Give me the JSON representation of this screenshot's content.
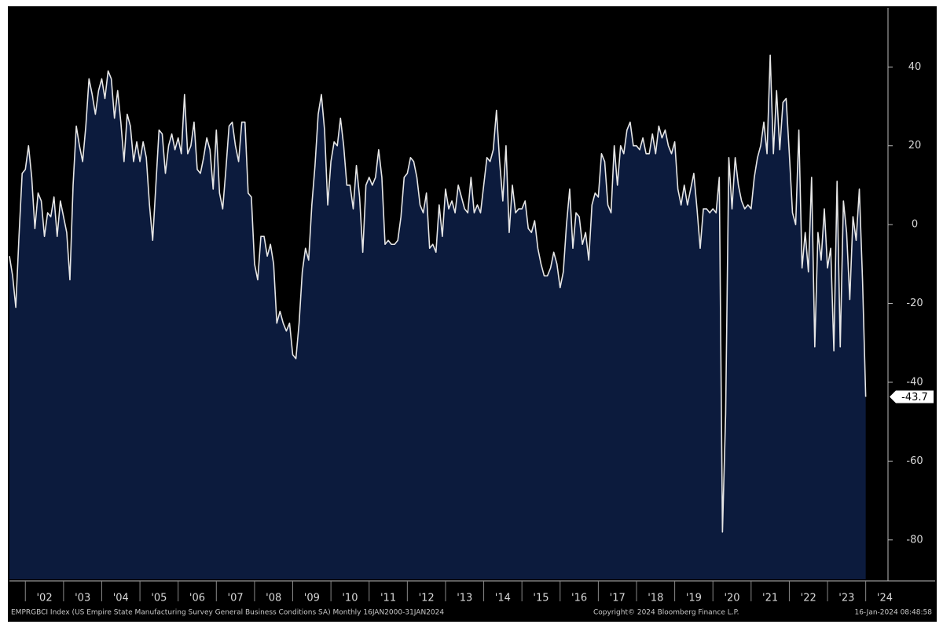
{
  "chart_data": {
    "type": "area",
    "source": "EMPRGBCI Index (US Empire State Manufacturing Survey General Business Conditions SA)  Monthly 16JAN2000-31JAN2024",
    "copyright": "Copyright© 2024 Bloomberg Finance L.P.",
    "timestamp": "16-Jan-2024 08:48:58",
    "x": [
      "2001-08",
      "2001-09",
      "2001-10",
      "2001-11",
      "2001-12",
      "2002-01",
      "2002-02",
      "2002-03",
      "2002-04",
      "2002-05",
      "2002-06",
      "2002-07",
      "2002-08",
      "2002-09",
      "2002-10",
      "2002-11",
      "2002-12",
      "2003-01",
      "2003-02",
      "2003-03",
      "2003-04",
      "2003-05",
      "2003-06",
      "2003-07",
      "2003-08",
      "2003-09",
      "2003-10",
      "2003-11",
      "2003-12",
      "2004-01",
      "2004-02",
      "2004-03",
      "2004-04",
      "2004-05",
      "2004-06",
      "2004-07",
      "2004-08",
      "2004-09",
      "2004-10",
      "2004-11",
      "2004-12",
      "2005-01",
      "2005-02",
      "2005-03",
      "2005-04",
      "2005-05",
      "2005-06",
      "2005-07",
      "2005-08",
      "2005-09",
      "2005-10",
      "2005-11",
      "2005-12",
      "2006-01",
      "2006-02",
      "2006-03",
      "2006-04",
      "2006-05",
      "2006-06",
      "2006-07",
      "2006-08",
      "2006-09",
      "2006-10",
      "2006-11",
      "2006-12",
      "2007-01",
      "2007-02",
      "2007-03",
      "2007-04",
      "2007-05",
      "2007-06",
      "2007-07",
      "2007-08",
      "2007-09",
      "2007-10",
      "2007-11",
      "2007-12",
      "2008-01",
      "2008-02",
      "2008-03",
      "2008-04",
      "2008-05",
      "2008-06",
      "2008-07",
      "2008-08",
      "2008-09",
      "2008-10",
      "2008-11",
      "2008-12",
      "2009-01",
      "2009-02",
      "2009-03",
      "2009-04",
      "2009-05",
      "2009-06",
      "2009-07",
      "2009-08",
      "2009-09",
      "2009-10",
      "2009-11",
      "2009-12",
      "2010-01",
      "2010-02",
      "2010-03",
      "2010-04",
      "2010-05",
      "2010-06",
      "2010-07",
      "2010-08",
      "2010-09",
      "2010-10",
      "2010-11",
      "2010-12",
      "2011-01",
      "2011-02",
      "2011-03",
      "2011-04",
      "2011-05",
      "2011-06",
      "2011-07",
      "2011-08",
      "2011-09",
      "2011-10",
      "2011-11",
      "2011-12",
      "2012-01",
      "2012-02",
      "2012-03",
      "2012-04",
      "2012-05",
      "2012-06",
      "2012-07",
      "2012-08",
      "2012-09",
      "2012-10",
      "2012-11",
      "2012-12",
      "2013-01",
      "2013-02",
      "2013-03",
      "2013-04",
      "2013-05",
      "2013-06",
      "2013-07",
      "2013-08",
      "2013-09",
      "2013-10",
      "2013-11",
      "2013-12",
      "2014-01",
      "2014-02",
      "2014-03",
      "2014-04",
      "2014-05",
      "2014-06",
      "2014-07",
      "2014-08",
      "2014-09",
      "2014-10",
      "2014-11",
      "2014-12",
      "2015-01",
      "2015-02",
      "2015-03",
      "2015-04",
      "2015-05",
      "2015-06",
      "2015-07",
      "2015-08",
      "2015-09",
      "2015-10",
      "2015-11",
      "2015-12",
      "2016-01",
      "2016-02",
      "2016-03",
      "2016-04",
      "2016-05",
      "2016-06",
      "2016-07",
      "2016-08",
      "2016-09",
      "2016-10",
      "2016-11",
      "2016-12",
      "2017-01",
      "2017-02",
      "2017-03",
      "2017-04",
      "2017-05",
      "2017-06",
      "2017-07",
      "2017-08",
      "2017-09",
      "2017-10",
      "2017-11",
      "2017-12",
      "2018-01",
      "2018-02",
      "2018-03",
      "2018-04",
      "2018-05",
      "2018-06",
      "2018-07",
      "2018-08",
      "2018-09",
      "2018-10",
      "2018-11",
      "2018-12",
      "2019-01",
      "2019-02",
      "2019-03",
      "2019-04",
      "2019-05",
      "2019-06",
      "2019-07",
      "2019-08",
      "2019-09",
      "2019-10",
      "2019-11",
      "2019-12",
      "2020-01",
      "2020-02",
      "2020-03",
      "2020-04",
      "2020-05",
      "2020-06",
      "2020-07",
      "2020-08",
      "2020-09",
      "2020-10",
      "2020-11",
      "2020-12",
      "2021-01",
      "2021-02",
      "2021-03",
      "2021-04",
      "2021-05",
      "2021-06",
      "2021-07",
      "2021-08",
      "2021-09",
      "2021-10",
      "2021-11",
      "2021-12",
      "2022-01",
      "2022-02",
      "2022-03",
      "2022-04",
      "2022-05",
      "2022-06",
      "2022-07",
      "2022-08",
      "2022-09",
      "2022-10",
      "2022-11",
      "2022-12",
      "2023-01",
      "2023-02",
      "2023-03",
      "2023-04",
      "2023-05",
      "2023-06",
      "2023-07",
      "2023-08",
      "2023-09",
      "2023-10",
      "2023-11",
      "2023-12",
      "2024-01"
    ],
    "series": [
      {
        "color": "#e6e6e6",
        "fill": "#0c1b3d",
        "values": [
          -8,
          -13,
          -21,
          -3,
          13,
          14,
          20,
          12,
          -1,
          8,
          6,
          -3,
          3,
          2,
          7,
          -3,
          6,
          2,
          -2,
          -14,
          10,
          25,
          20,
          16,
          25,
          37,
          33,
          28,
          34,
          37,
          32,
          39,
          37,
          27,
          34,
          26,
          16,
          28,
          25,
          16,
          21,
          16,
          21,
          17,
          5,
          -4,
          10,
          24,
          23,
          13,
          20,
          23,
          19,
          22,
          18,
          33,
          18,
          20,
          26,
          14,
          13,
          17,
          22,
          19,
          9,
          24,
          8,
          4,
          14,
          25,
          26,
          20,
          16,
          26,
          26,
          8,
          7,
          -10,
          -14,
          -3,
          -3,
          -8,
          -5,
          -10,
          -25,
          -22,
          -25,
          -27,
          -25,
          -33,
          -34,
          -25,
          -12,
          -6,
          -9,
          5,
          15,
          28,
          33,
          24,
          5,
          16,
          21,
          20,
          27,
          20,
          10,
          10,
          4,
          15,
          7,
          -7,
          10,
          12,
          10,
          12,
          19,
          12,
          -5,
          -4,
          -5,
          -5,
          -4,
          2,
          12,
          13,
          17,
          16,
          12,
          5,
          3,
          8,
          -6,
          -5,
          -7,
          5,
          -3,
          9,
          4,
          6,
          3,
          10,
          7,
          4,
          3,
          12,
          3,
          5,
          3,
          10,
          17,
          16,
          19,
          29,
          16,
          6,
          20,
          -2,
          10,
          3,
          4,
          4,
          6,
          -1,
          -2,
          1,
          -6,
          -10,
          -13,
          -13,
          -11,
          -7,
          -10,
          -16,
          -12,
          0,
          9,
          -6,
          3,
          2,
          -5,
          -2,
          -9,
          5,
          8,
          7,
          18,
          16,
          5,
          3,
          20,
          10,
          20,
          18,
          24,
          26,
          20,
          20,
          19,
          22,
          18,
          18,
          23,
          18,
          25,
          22,
          24,
          20,
          18,
          21,
          9,
          5,
          10,
          5,
          9,
          13,
          4,
          -6,
          4,
          4,
          3,
          4,
          3,
          12,
          -78,
          -48,
          17,
          4,
          17,
          10,
          6,
          4,
          5,
          4,
          12,
          17,
          20,
          26,
          18,
          43,
          18,
          34,
          19,
          31,
          32,
          18,
          3,
          0,
          24,
          -11,
          -2,
          -12,
          12,
          -31,
          -2,
          -9,
          4,
          -11,
          -6,
          -32,
          11,
          -31,
          6,
          -2,
          -19,
          2,
          -4,
          9,
          -14,
          -43.7
        ]
      }
    ],
    "xlim": [
      "2001-08",
      "2024-08"
    ],
    "xticks": [
      {
        "value": "2002-07",
        "label": "'02"
      },
      {
        "value": "2003-07",
        "label": "'03"
      },
      {
        "value": "2004-07",
        "label": "'04"
      },
      {
        "value": "2005-07",
        "label": "'05"
      },
      {
        "value": "2006-07",
        "label": "'06"
      },
      {
        "value": "2007-07",
        "label": "'07"
      },
      {
        "value": "2008-07",
        "label": "'08"
      },
      {
        "value": "2009-07",
        "label": "'09"
      },
      {
        "value": "2010-07",
        "label": "'10"
      },
      {
        "value": "2011-07",
        "label": "'11"
      },
      {
        "value": "2012-07",
        "label": "'12"
      },
      {
        "value": "2013-07",
        "label": "'13"
      },
      {
        "value": "2014-07",
        "label": "'14"
      },
      {
        "value": "2015-07",
        "label": "'15"
      },
      {
        "value": "2016-07",
        "label": "'16"
      },
      {
        "value": "2017-07",
        "label": "'17"
      },
      {
        "value": "2018-07",
        "label": "'18"
      },
      {
        "value": "2019-07",
        "label": "'19"
      },
      {
        "value": "2020-07",
        "label": "'20"
      },
      {
        "value": "2021-07",
        "label": "'21"
      },
      {
        "value": "2022-07",
        "label": "'22"
      },
      {
        "value": "2023-07",
        "label": "'23"
      },
      {
        "value": "2024-07",
        "label": "'24"
      }
    ],
    "ylim": [
      -90,
      55
    ],
    "yticks": [
      40,
      20,
      0,
      -20,
      -40,
      -60,
      -80
    ],
    "y_axis_side": "right",
    "grid": false
  }
}
